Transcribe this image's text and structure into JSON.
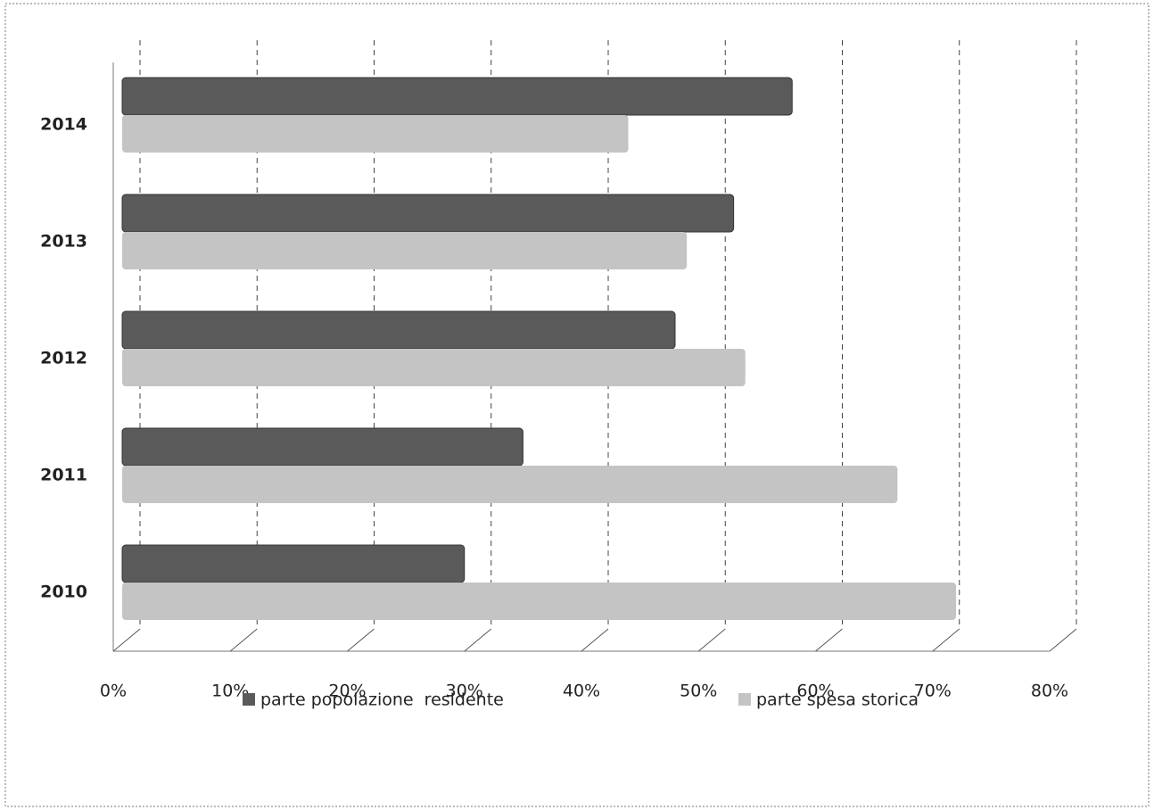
{
  "chart_data": {
    "type": "bar",
    "orientation": "horizontal",
    "categories": [
      "2014",
      "2013",
      "2012",
      "2011",
      "2010"
    ],
    "series": [
      {
        "name": "parte popolazione  residente",
        "color": "#5a5a5a",
        "values": [
          58,
          53,
          48,
          35,
          30
        ]
      },
      {
        "name": "parte spesa storica",
        "color": "#c4c4c4",
        "values": [
          44,
          49,
          54,
          67,
          72
        ]
      }
    ],
    "xlim": [
      0,
      80
    ],
    "xticks": [
      {
        "value": 0,
        "label": "0%"
      },
      {
        "value": 10,
        "label": "10%"
      },
      {
        "value": 20,
        "label": "20%"
      },
      {
        "value": 30,
        "label": "30%"
      },
      {
        "value": 40,
        "label": "40%"
      },
      {
        "value": 50,
        "label": "50%"
      },
      {
        "value": 60,
        "label": "60%"
      },
      {
        "value": 70,
        "label": "70%"
      },
      {
        "value": 80,
        "label": "80%"
      }
    ],
    "grid": true,
    "legend": "bottom"
  }
}
